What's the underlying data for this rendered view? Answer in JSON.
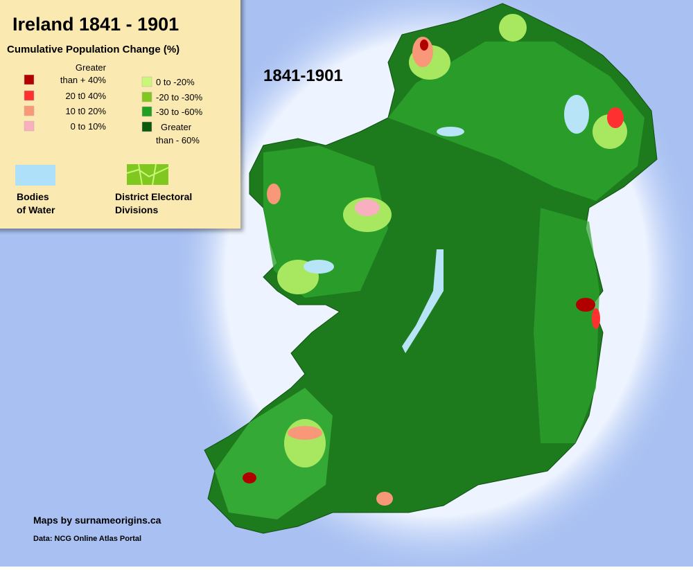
{
  "title": "Ireland 1841 - 1901",
  "subtitle": "Cumulative Population Change (%)",
  "legend": {
    "items": [
      {
        "label": [
          "Greater",
          "than + 40%"
        ],
        "color": "#b00000"
      },
      {
        "label": [
          "20 t0 40%"
        ],
        "color": "#ff3030"
      },
      {
        "label": [
          "10 t0 20%"
        ],
        "color": "#f89878"
      },
      {
        "label": [
          "0 to 10%"
        ],
        "color": "#f8b0c0"
      },
      {
        "label": [
          "0 to -20%"
        ],
        "color": "#c8f878"
      },
      {
        "label": [
          "-20 to -30%"
        ],
        "color": "#80c820"
      },
      {
        "label": [
          "-30 to -60%"
        ],
        "color": "#20a020"
      },
      {
        "label": [
          "Greater",
          "than - 60%"
        ],
        "color": "#0a5a0a"
      }
    ]
  },
  "keys": [
    {
      "label": [
        "Bodies",
        "of Water"
      ],
      "color": "#aee0fa"
    },
    {
      "label": [
        "District Electoral",
        "Divisions"
      ],
      "color": "#80c820"
    }
  ],
  "map_label": "1841-1901",
  "credit": "Maps by surnameorigins.ca",
  "source": "Data: NCG Online Atlas Portal"
}
